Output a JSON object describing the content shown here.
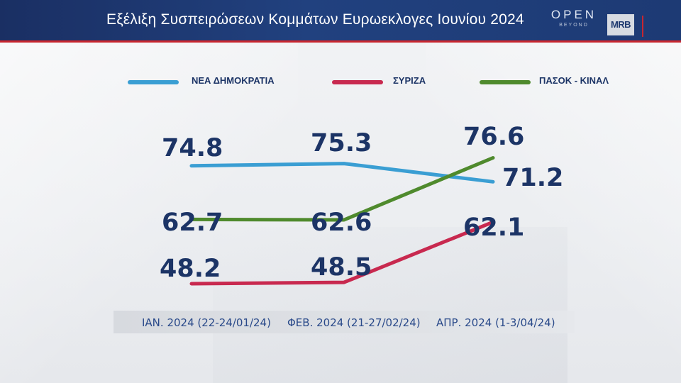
{
  "header": {
    "title": "Εξέλιξη Συσπειρώσεων Κομμάτων Ευρωεκλογες Ιουνίου 2024",
    "logo_open": "OPEN",
    "logo_open_sub": "BEYOND",
    "logo_mrb": "MRB"
  },
  "colors": {
    "header_bg": "#1d3a74",
    "nd": "#3a9ed3",
    "syriza": "#c8294f",
    "pasok": "#4f8a2d",
    "label": "#1c3466"
  },
  "legend": [
    {
      "label": "ΝΕΑ ΔΗΜΟΚΡΑΤΙΑ"
    },
    {
      "label": "ΣΥΡΙΖΑ"
    },
    {
      "label": "ΠΑΣΟΚ - ΚΙΝΑΛ"
    }
  ],
  "chart_data": {
    "type": "line",
    "title": "Εξέλιξη Συσπειρώσεων Κομμάτων Ευρωεκλογες Ιουνίου 2024",
    "categories": [
      "ΙΑΝ. 2024 (22-24/01/24)",
      "ΦΕΒ. 2024 (21-27/02/24)",
      "ΑΠΡ. 2024 (1-3/04/24)"
    ],
    "series": [
      {
        "name": "ΝΕΑ ΔΗΜΟΚΡΑΤΙΑ",
        "values": [
          74.8,
          75.3,
          71.2
        ],
        "labels": [
          "74.8",
          "75.3",
          "71.2"
        ]
      },
      {
        "name": "ΣΥΡΙΖΑ",
        "values": [
          48.2,
          48.5,
          62.1
        ],
        "labels": [
          "48.2",
          "48.5",
          "62.1"
        ]
      },
      {
        "name": "ΠΑΣΟΚ - ΚΙΝΑΛ",
        "values": [
          62.7,
          62.6,
          76.6
        ],
        "labels": [
          "62.7",
          "62.6",
          "76.6"
        ]
      }
    ],
    "legend_position": "top",
    "grid": false
  }
}
